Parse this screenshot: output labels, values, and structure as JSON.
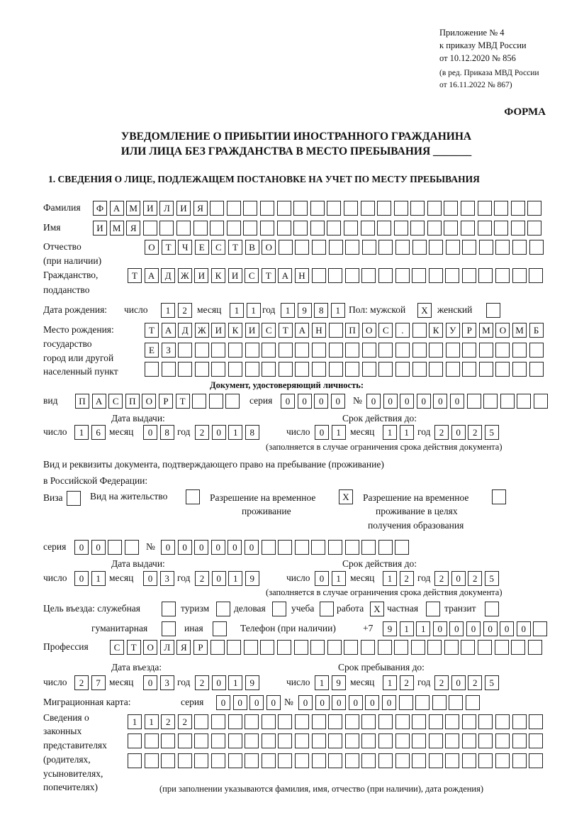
{
  "header": {
    "appendix": "Приложение № 4",
    "order": "к приказу МВД России",
    "order_date": "от 10.12.2020 № 856",
    "edition1": "(в ред. Приказа МВД России",
    "edition2": "от 16.11.2022 № 867)",
    "form_label": "ФОРМА",
    "title1": "УВЕДОМЛЕНИЕ О ПРИБЫТИИ ИНОСТРАННОГО ГРАЖДАНИНА",
    "title2": "ИЛИ ЛИЦА БЕЗ ГРАЖДАНСТВА В МЕСТО ПРЕБЫВАНИЯ _______"
  },
  "section1": {
    "heading": "1. СВЕДЕНИЯ О ЛИЦЕ, ПОДЛЕЖАЩЕМ ПОСТАНОВКЕ НА УЧЕТ ПО МЕСТУ ПРЕБЫВАНИЯ",
    "labels": {
      "surname": "Фамилия",
      "name": "Имя",
      "patronymic1": "Отчество",
      "patronymic2": "(при наличии)",
      "citizenship1": "Гражданство,",
      "citizenship2": "подданство",
      "birth_date": "Дата рождения:",
      "day": "число",
      "month": "месяц",
      "year": "год",
      "sex_male": "Пол: мужской",
      "sex_female": "женский",
      "birthplace1": "Место рождения:",
      "birthplace2": "государство",
      "birthplace3": "город или другой",
      "birthplace4": "населенный пункт",
      "id_doc": "Документ, удостоверяющий личность:",
      "doc_kind": "вид",
      "series": "серия",
      "number": "№",
      "issue_date": "Дата выдачи:",
      "valid_until": "Срок действия до:",
      "validity_note": "(заполняется в случае ограничения срока действия документа)",
      "right_doc1": "Вид и реквизиты документа, подтверждающего право на пребывание (проживание)",
      "right_doc2": "в Российской Федерации:",
      "visa": "Виза",
      "residence_permit": "Вид на жительство",
      "trp1": "Разрешение на временное",
      "trp2": "проживание",
      "trp_edu1": "Разрешение на временное",
      "trp_edu2": "проживание в целях",
      "trp_edu3": "получения образования",
      "purpose": "Цель въезда: служебная",
      "tourism": "туризм",
      "business": "деловая",
      "study": "учеба",
      "work": "работа",
      "private": "частная",
      "transit": "транзит",
      "humanitarian": "гуманитарная",
      "other": "иная",
      "phone": "Телефон (при наличии)",
      "phone_prefix": "+7",
      "profession": "Профессия",
      "entry_date": "Дата въезда:",
      "stay_until": "Срок пребывания до:",
      "migration_card": "Миграционная карта:",
      "reps1": "Сведения о",
      "reps2": "законных",
      "reps3": "представителях",
      "reps4": "(родителях,",
      "reps5": "усыновителях,",
      "reps6": "попечителях)",
      "reps_note": "(при заполнении указываются фамилия, имя, отчество (при наличии), дата рождения)"
    },
    "values": {
      "surname": "ФАМИЛИЯ",
      "name": "ИМЯ",
      "patronymic": "ОТЧЕСТВО",
      "citizenship": "ТАДЖИКИСТАН",
      "birth_day": "12",
      "birth_month": "11",
      "birth_year": "1981",
      "sex_male": "X",
      "sex_female": "",
      "birthplace_row1": "ТАДЖИКИСТАН ПОС. КУРМОМБ",
      "birthplace_row2": "ЕЗ",
      "birthplace_row3": "",
      "doc_kind": "ПАСПОРТ",
      "doc_series": "0000",
      "doc_number": "000000",
      "doc_issue_day": "16",
      "doc_issue_month": "08",
      "doc_issue_year": "2018",
      "doc_valid_day": "01",
      "doc_valid_month": "11",
      "doc_valid_year": "2025",
      "visa": "",
      "residence_permit": "",
      "trp": "X",
      "trp_edu": "",
      "right_series": "00",
      "right_number": "000000",
      "right_issue_day": "01",
      "right_issue_month": "03",
      "right_issue_year": "2019",
      "right_valid_day": "01",
      "right_valid_month": "12",
      "right_valid_year": "2025",
      "purpose_official": "",
      "purpose_tourism": "",
      "purpose_business": "",
      "purpose_study": "",
      "purpose_work": "X",
      "purpose_private": "",
      "purpose_transit": "",
      "purpose_humanitarian": "",
      "purpose_other": "",
      "phone": "911000000",
      "profession": "СТОЛЯР",
      "entry_day": "27",
      "entry_month": "03",
      "entry_year": "2019",
      "stay_day": "19",
      "stay_month": "12",
      "stay_year": "2025",
      "mig_series": "0000",
      "mig_number": "000000",
      "reps_row1": "1122",
      "reps_row2": "",
      "reps_row3": ""
    }
  }
}
